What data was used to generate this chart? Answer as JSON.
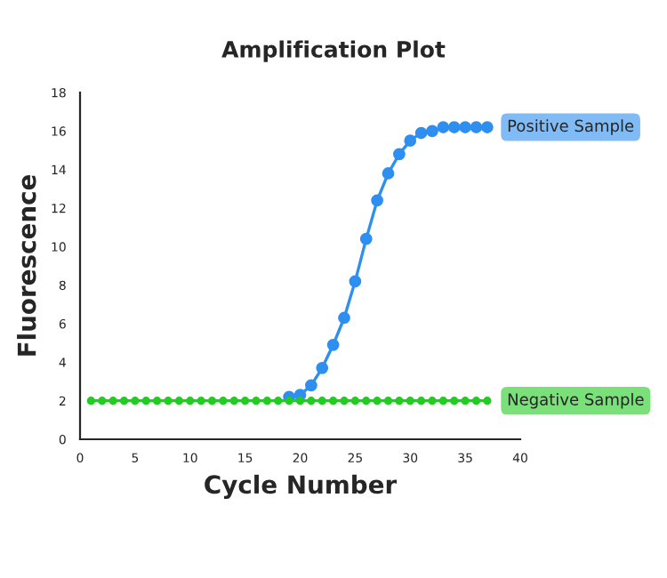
{
  "chart_data": {
    "type": "line",
    "title": "Amplification Plot",
    "xlabel": "Cycle Number",
    "ylabel": "Fluorescence",
    "xlim": [
      0,
      40
    ],
    "xticks": [
      0,
      5,
      10,
      15,
      20,
      25,
      30,
      35,
      40
    ],
    "ylim": [
      0,
      18
    ],
    "yticks": [
      0,
      2,
      4,
      6,
      8,
      10,
      12,
      14,
      16,
      18
    ],
    "grid": false,
    "legend": false,
    "marker": "circle",
    "line_style": "solid",
    "series": [
      {
        "name": "Negative Sample",
        "color": "#22cc22",
        "x": [
          1,
          2,
          3,
          4,
          5,
          6,
          7,
          8,
          9,
          10,
          11,
          12,
          13,
          14,
          15,
          16,
          17,
          18,
          19,
          20,
          21,
          22,
          23,
          24,
          25,
          26,
          27,
          28,
          29,
          30,
          31,
          32,
          33,
          34,
          35,
          36,
          37
        ],
        "values": [
          2,
          2,
          2,
          2,
          2,
          2,
          2,
          2,
          2,
          2,
          2,
          2,
          2,
          2,
          2,
          2,
          2,
          2,
          2,
          2,
          2,
          2,
          2,
          2,
          2,
          2,
          2,
          2,
          2,
          2,
          2,
          2,
          2,
          2,
          2,
          2,
          2
        ]
      },
      {
        "name": "Positive Sample",
        "color": "#2e8ff0",
        "x": [
          19,
          20,
          21,
          22,
          23,
          24,
          25,
          26,
          27,
          28,
          29,
          30,
          31,
          32,
          33,
          34,
          35,
          36,
          37
        ],
        "values": [
          2.2,
          2.3,
          2.8,
          3.7,
          4.9,
          6.3,
          8.2,
          10.4,
          12.4,
          13.8,
          14.8,
          15.5,
          15.9,
          16.0,
          16.2,
          16.2,
          16.2,
          16.2,
          16.2
        ]
      }
    ]
  }
}
